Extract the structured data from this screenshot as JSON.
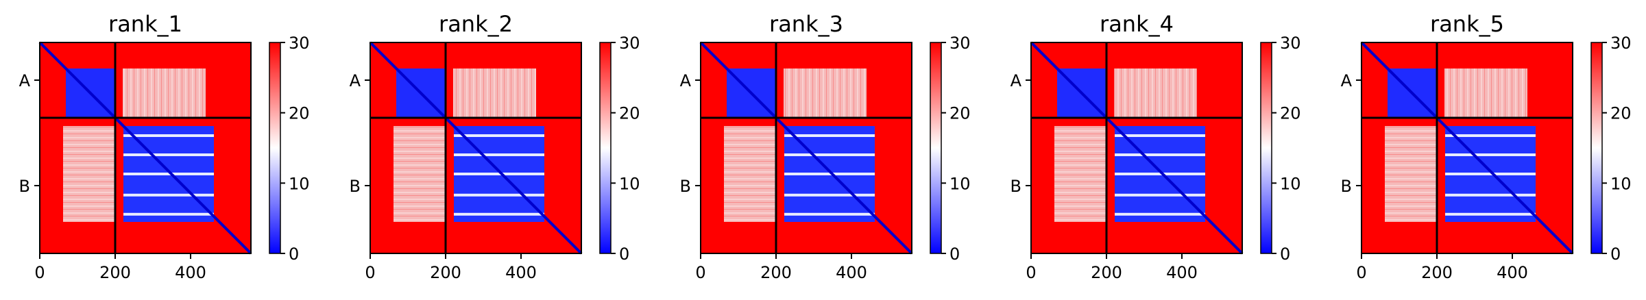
{
  "chart_data": [
    {
      "type": "heatmap",
      "title": "rank_1",
      "x_ticks": [
        0,
        200,
        400
      ],
      "chain_labels": [
        "A",
        "B"
      ],
      "chain_lengths": [
        200,
        360
      ],
      "colorbar_ticks": [
        0,
        10,
        20,
        30
      ],
      "colorbar_range": [
        0,
        30
      ],
      "colormap": [
        "#0000ff",
        "#ffffff",
        "#ff0000"
      ]
    },
    {
      "type": "heatmap",
      "title": "rank_2",
      "x_ticks": [
        0,
        200,
        400
      ],
      "chain_labels": [
        "A",
        "B"
      ],
      "chain_lengths": [
        200,
        360
      ],
      "colorbar_ticks": [
        0,
        10,
        20,
        30
      ],
      "colorbar_range": [
        0,
        30
      ],
      "colormap": [
        "#0000ff",
        "#ffffff",
        "#ff0000"
      ]
    },
    {
      "type": "heatmap",
      "title": "rank_3",
      "x_ticks": [
        0,
        200,
        400
      ],
      "chain_labels": [
        "A",
        "B"
      ],
      "chain_lengths": [
        200,
        360
      ],
      "colorbar_ticks": [
        0,
        10,
        20,
        30
      ],
      "colorbar_range": [
        0,
        30
      ],
      "colormap": [
        "#0000ff",
        "#ffffff",
        "#ff0000"
      ]
    },
    {
      "type": "heatmap",
      "title": "rank_4",
      "x_ticks": [
        0,
        200,
        400
      ],
      "chain_labels": [
        "A",
        "B"
      ],
      "chain_lengths": [
        200,
        360
      ],
      "colorbar_ticks": [
        0,
        10,
        20,
        30
      ],
      "colorbar_range": [
        0,
        30
      ],
      "colormap": [
        "#0000ff",
        "#ffffff",
        "#ff0000"
      ]
    },
    {
      "type": "heatmap",
      "title": "rank_5",
      "x_ticks": [
        0,
        200,
        400
      ],
      "chain_labels": [
        "A",
        "B"
      ],
      "chain_lengths": [
        200,
        360
      ],
      "colorbar_ticks": [
        0,
        10,
        20,
        30
      ],
      "colorbar_range": [
        0,
        30
      ],
      "colormap": [
        "#0000ff",
        "#ffffff",
        "#ff0000"
      ]
    }
  ]
}
